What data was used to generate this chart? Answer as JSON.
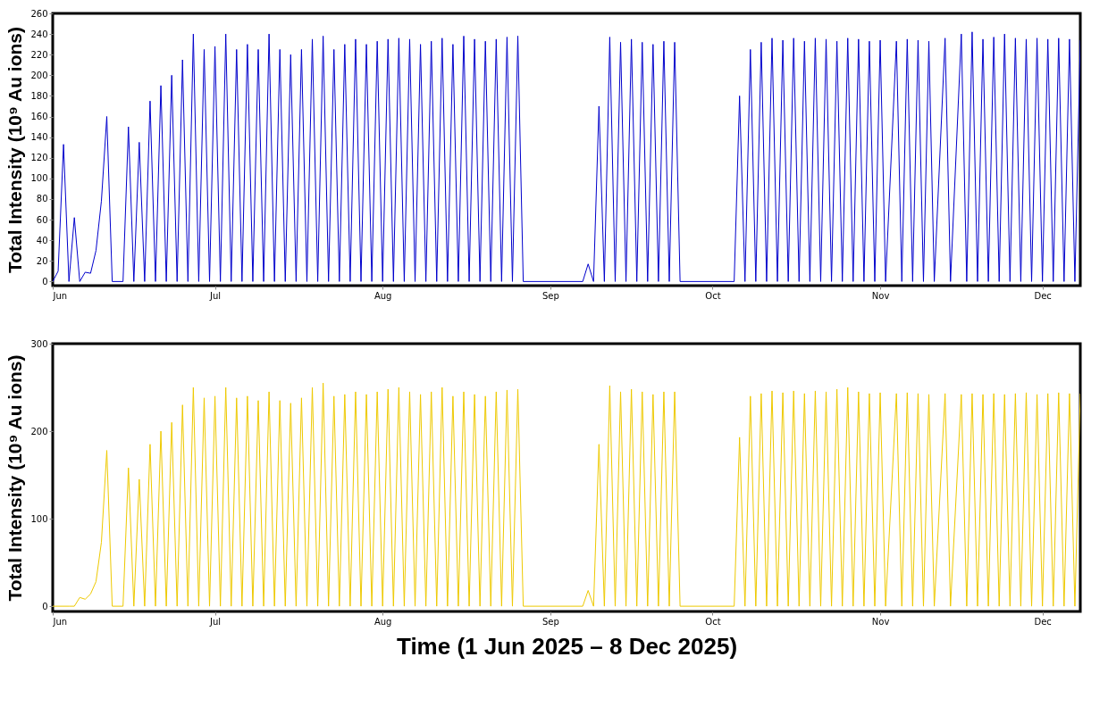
{
  "chart_data": [
    {
      "type": "line",
      "ylabel": "Total Intensity (10⁹ Au ions)",
      "xlim": [
        "2025-06-01",
        "2025-12-08"
      ],
      "ylim": [
        -4,
        260
      ],
      "yticks": [
        0,
        20,
        40,
        60,
        80,
        100,
        120,
        140,
        160,
        180,
        200,
        220,
        240,
        260
      ],
      "xticks": [
        {
          "value": "2025-06-01",
          "label": "Jun"
        },
        {
          "value": "2025-07-01",
          "label": "Jul"
        },
        {
          "value": "2025-08-01",
          "label": "Aug"
        },
        {
          "value": "2025-09-01",
          "label": "Sep"
        },
        {
          "value": "2025-10-01",
          "label": "Oct"
        },
        {
          "value": "2025-11-01",
          "label": "Nov"
        },
        {
          "value": "2025-12-01",
          "label": "Dec"
        }
      ],
      "x": [
        "2025-06-01",
        "2025-06-02",
        "2025-06-03",
        "2025-06-04",
        "2025-06-05",
        "2025-06-06",
        "2025-06-07",
        "2025-06-08",
        "2025-06-09",
        "2025-06-10",
        "2025-06-11",
        "2025-06-12",
        "2025-06-14",
        "2025-06-15",
        "2025-06-16",
        "2025-06-17",
        "2025-06-18",
        "2025-06-19",
        "2025-06-20",
        "2025-06-21",
        "2025-06-22",
        "2025-06-23",
        "2025-06-24",
        "2025-06-25",
        "2025-06-26",
        "2025-06-27",
        "2025-06-28",
        "2025-06-29",
        "2025-06-30",
        "2025-07-01",
        "2025-07-02",
        "2025-07-03",
        "2025-07-04",
        "2025-07-05",
        "2025-07-06",
        "2025-07-07",
        "2025-07-08",
        "2025-07-09",
        "2025-07-10",
        "2025-07-11",
        "2025-07-12",
        "2025-07-13",
        "2025-07-14",
        "2025-07-15",
        "2025-07-16",
        "2025-07-17",
        "2025-07-18",
        "2025-07-19",
        "2025-07-20",
        "2025-07-21",
        "2025-07-22",
        "2025-07-23",
        "2025-07-24",
        "2025-07-25",
        "2025-07-26",
        "2025-07-27",
        "2025-07-28",
        "2025-07-29",
        "2025-07-30",
        "2025-07-31",
        "2025-08-01",
        "2025-08-02",
        "2025-08-03",
        "2025-08-04",
        "2025-08-05",
        "2025-08-06",
        "2025-08-07",
        "2025-08-08",
        "2025-08-09",
        "2025-08-10",
        "2025-08-11",
        "2025-08-12",
        "2025-08-13",
        "2025-08-14",
        "2025-08-15",
        "2025-08-16",
        "2025-08-17",
        "2025-08-18",
        "2025-08-19",
        "2025-08-20",
        "2025-08-21",
        "2025-08-22",
        "2025-08-23",
        "2025-08-24",
        "2025-08-25",
        "2025-08-26",
        "2025-08-27",
        "2025-09-07",
        "2025-09-08",
        "2025-09-09",
        "2025-09-10",
        "2025-09-11",
        "2025-09-12",
        "2025-09-13",
        "2025-09-14",
        "2025-09-15",
        "2025-09-16",
        "2025-09-17",
        "2025-09-18",
        "2025-09-19",
        "2025-09-20",
        "2025-09-21",
        "2025-09-22",
        "2025-09-23",
        "2025-09-24",
        "2025-09-25",
        "2025-10-05",
        "2025-10-06",
        "2025-10-07",
        "2025-10-08",
        "2025-10-09",
        "2025-10-10",
        "2025-10-11",
        "2025-10-12",
        "2025-10-13",
        "2025-10-14",
        "2025-10-15",
        "2025-10-16",
        "2025-10-17",
        "2025-10-18",
        "2025-10-19",
        "2025-10-20",
        "2025-10-21",
        "2025-10-22",
        "2025-10-23",
        "2025-10-24",
        "2025-10-25",
        "2025-10-26",
        "2025-10-27",
        "2025-10-28",
        "2025-10-29",
        "2025-10-30",
        "2025-10-31",
        "2025-11-01",
        "2025-11-02",
        "2025-11-04",
        "2025-11-05",
        "2025-11-06",
        "2025-11-07",
        "2025-11-08",
        "2025-11-09",
        "2025-11-10",
        "2025-11-11",
        "2025-11-13",
        "2025-11-14",
        "2025-11-16",
        "2025-11-17",
        "2025-11-18",
        "2025-11-19",
        "2025-11-20",
        "2025-11-21",
        "2025-11-22",
        "2025-11-23",
        "2025-11-24",
        "2025-11-25",
        "2025-11-26",
        "2025-11-27",
        "2025-11-28",
        "2025-11-29",
        "2025-11-30",
        "2025-12-01",
        "2025-12-02",
        "2025-12-03",
        "2025-12-04",
        "2025-12-05",
        "2025-12-06",
        "2025-12-07",
        "2025-12-08"
      ],
      "series": [
        {
          "color": "#0000cc",
          "values": [
            0,
            10,
            133,
            0,
            62,
            0,
            9,
            8,
            30,
            78,
            160,
            0,
            0,
            150,
            0,
            135,
            0,
            175,
            0,
            190,
            0,
            200,
            0,
            215,
            0,
            240,
            0,
            225,
            0,
            228,
            0,
            240,
            0,
            225,
            0,
            230,
            0,
            225,
            0,
            240,
            0,
            225,
            0,
            220,
            0,
            225,
            0,
            235,
            0,
            238,
            0,
            225,
            0,
            230,
            0,
            235,
            0,
            230,
            0,
            233,
            0,
            235,
            0,
            236,
            0,
            235,
            0,
            230,
            0,
            233,
            0,
            236,
            0,
            230,
            0,
            238,
            0,
            235,
            0,
            233,
            0,
            235,
            0,
            237,
            0,
            238,
            0,
            0,
            17,
            0,
            170,
            0,
            237,
            0,
            232,
            0,
            235,
            0,
            232,
            0,
            230,
            0,
            233,
            0,
            232,
            0,
            0,
            180,
            0,
            225,
            0,
            232,
            0,
            236,
            0,
            234,
            0,
            236,
            0,
            233,
            0,
            236,
            0,
            235,
            0,
            233,
            0,
            236,
            0,
            235,
            0,
            233,
            0,
            234,
            0,
            233,
            0,
            235,
            0,
            234,
            0,
            233,
            0,
            236,
            0,
            240,
            0,
            242,
            0,
            235,
            0,
            237,
            0,
            240,
            0,
            236,
            0,
            235,
            0,
            236,
            0,
            235,
            0,
            236,
            0,
            235,
            0,
            234
          ]
        }
      ]
    },
    {
      "type": "line",
      "ylabel": "Total Intensity (10⁹ Au ions)",
      "xlabel": "Time (1 Jun 2025 – 8 Dec 2025)",
      "xlim": [
        "2025-06-01",
        "2025-12-08"
      ],
      "ylim": [
        -6,
        300
      ],
      "yticks": [
        0,
        100,
        200,
        300
      ],
      "xticks": [
        {
          "value": "2025-06-01",
          "label": "Jun"
        },
        {
          "value": "2025-07-01",
          "label": "Jul"
        },
        {
          "value": "2025-08-01",
          "label": "Aug"
        },
        {
          "value": "2025-09-01",
          "label": "Sep"
        },
        {
          "value": "2025-10-01",
          "label": "Oct"
        },
        {
          "value": "2025-11-01",
          "label": "Nov"
        },
        {
          "value": "2025-12-01",
          "label": "Dec"
        }
      ],
      "x": [
        "2025-06-01",
        "2025-06-04",
        "2025-06-05",
        "2025-06-06",
        "2025-06-07",
        "2025-06-08",
        "2025-06-09",
        "2025-06-10",
        "2025-06-11",
        "2025-06-12",
        "2025-06-14",
        "2025-06-15",
        "2025-06-16",
        "2025-06-17",
        "2025-06-18",
        "2025-06-19",
        "2025-06-20",
        "2025-06-21",
        "2025-06-22",
        "2025-06-23",
        "2025-06-24",
        "2025-06-25",
        "2025-06-26",
        "2025-06-27",
        "2025-06-28",
        "2025-06-29",
        "2025-06-30",
        "2025-07-01",
        "2025-07-02",
        "2025-07-03",
        "2025-07-04",
        "2025-07-05",
        "2025-07-06",
        "2025-07-07",
        "2025-07-08",
        "2025-07-09",
        "2025-07-10",
        "2025-07-11",
        "2025-07-12",
        "2025-07-13",
        "2025-07-14",
        "2025-07-15",
        "2025-07-16",
        "2025-07-17",
        "2025-07-18",
        "2025-07-19",
        "2025-07-20",
        "2025-07-21",
        "2025-07-22",
        "2025-07-23",
        "2025-07-24",
        "2025-07-25",
        "2025-07-26",
        "2025-07-27",
        "2025-07-28",
        "2025-07-29",
        "2025-07-30",
        "2025-07-31",
        "2025-08-01",
        "2025-08-02",
        "2025-08-03",
        "2025-08-04",
        "2025-08-05",
        "2025-08-06",
        "2025-08-07",
        "2025-08-08",
        "2025-08-09",
        "2025-08-10",
        "2025-08-11",
        "2025-08-12",
        "2025-08-13",
        "2025-08-14",
        "2025-08-15",
        "2025-08-16",
        "2025-08-17",
        "2025-08-18",
        "2025-08-19",
        "2025-08-20",
        "2025-08-21",
        "2025-08-22",
        "2025-08-23",
        "2025-08-24",
        "2025-08-25",
        "2025-08-26",
        "2025-08-27",
        "2025-09-07",
        "2025-09-08",
        "2025-09-09",
        "2025-09-10",
        "2025-09-11",
        "2025-09-12",
        "2025-09-13",
        "2025-09-14",
        "2025-09-15",
        "2025-09-16",
        "2025-09-17",
        "2025-09-18",
        "2025-09-19",
        "2025-09-20",
        "2025-09-21",
        "2025-09-22",
        "2025-09-23",
        "2025-09-24",
        "2025-09-25",
        "2025-10-05",
        "2025-10-06",
        "2025-10-07",
        "2025-10-08",
        "2025-10-09",
        "2025-10-10",
        "2025-10-11",
        "2025-10-12",
        "2025-10-13",
        "2025-10-14",
        "2025-10-15",
        "2025-10-16",
        "2025-10-17",
        "2025-10-18",
        "2025-10-19",
        "2025-10-20",
        "2025-10-21",
        "2025-10-22",
        "2025-10-23",
        "2025-10-24",
        "2025-10-25",
        "2025-10-26",
        "2025-10-27",
        "2025-10-28",
        "2025-10-29",
        "2025-10-30",
        "2025-10-31",
        "2025-11-01",
        "2025-11-02",
        "2025-11-04",
        "2025-11-05",
        "2025-11-06",
        "2025-11-07",
        "2025-11-08",
        "2025-11-09",
        "2025-11-10",
        "2025-11-11",
        "2025-11-13",
        "2025-11-14",
        "2025-11-16",
        "2025-11-17",
        "2025-11-18",
        "2025-11-19",
        "2025-11-20",
        "2025-11-21",
        "2025-11-22",
        "2025-11-23",
        "2025-11-24",
        "2025-11-25",
        "2025-11-26",
        "2025-11-27",
        "2025-11-28",
        "2025-11-29",
        "2025-11-30",
        "2025-12-01",
        "2025-12-02",
        "2025-12-03",
        "2025-12-04",
        "2025-12-05",
        "2025-12-06",
        "2025-12-07",
        "2025-12-08"
      ],
      "series": [
        {
          "color": "#eec900",
          "values": [
            0,
            0,
            0,
            10,
            8,
            14,
            28,
            73,
            178,
            0,
            0,
            158,
            0,
            145,
            0,
            185,
            0,
            200,
            0,
            210,
            0,
            230,
            0,
            250,
            0,
            238,
            0,
            240,
            0,
            250,
            0,
            238,
            0,
            240,
            0,
            235,
            0,
            245,
            0,
            235,
            0,
            232,
            0,
            238,
            0,
            250,
            0,
            255,
            0,
            240,
            0,
            242,
            0,
            245,
            0,
            242,
            0,
            245,
            0,
            248,
            0,
            250,
            0,
            245,
            0,
            242,
            0,
            245,
            0,
            250,
            0,
            240,
            0,
            245,
            0,
            242,
            0,
            240,
            0,
            245,
            0,
            247,
            0,
            248,
            0,
            0,
            18,
            0,
            185,
            0,
            252,
            0,
            245,
            0,
            248,
            0,
            245,
            0,
            242,
            0,
            245,
            0,
            245,
            0,
            0,
            193,
            0,
            240,
            0,
            243,
            0,
            246,
            0,
            244,
            0,
            246,
            0,
            243,
            0,
            246,
            0,
            245,
            0,
            248,
            0,
            250,
            0,
            245,
            0,
            243,
            0,
            244,
            0,
            243,
            0,
            244,
            0,
            243,
            0,
            242,
            0,
            243,
            0,
            242,
            0,
            243,
            0,
            242,
            0,
            243,
            0,
            242,
            0,
            243,
            0,
            244,
            0,
            242,
            0,
            243,
            0,
            244,
            0,
            243,
            0,
            243
          ]
        }
      ]
    }
  ]
}
